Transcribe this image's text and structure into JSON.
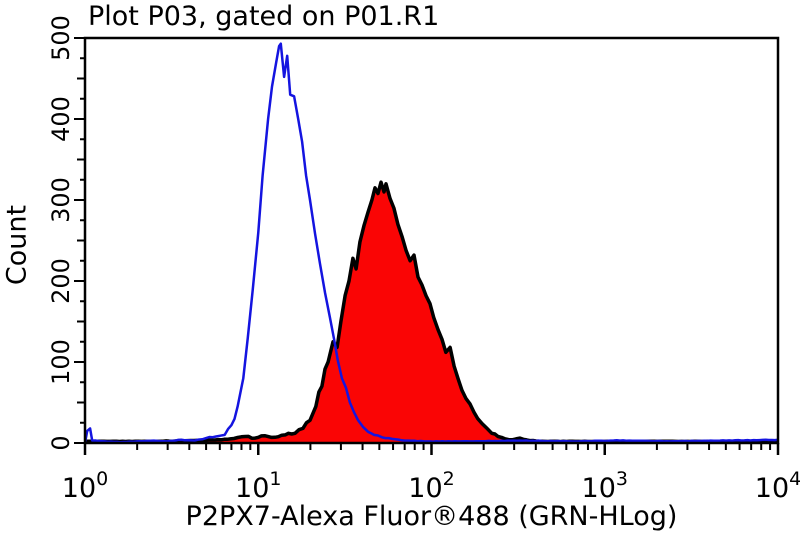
{
  "title": "Plot P03, gated on P01.R1",
  "chart_data": {
    "type": "area",
    "title": "Plot P03, gated on P01.R1",
    "xlabel": "P2PX7-Alexa Fluor®488 (GRN-HLog)",
    "ylabel": "Count",
    "x_scale": "log",
    "x_range": [
      1,
      10000
    ],
    "y_range": [
      0,
      500
    ],
    "x_tick_base": 10,
    "x_tick_exponents": [
      0,
      1,
      2,
      3,
      4
    ],
    "y_major_ticks": [
      0,
      100,
      200,
      300,
      400,
      500
    ],
    "y_minor_step": 25,
    "grid": false,
    "legend_position": "none",
    "frame_color": "#000000",
    "series": [
      {
        "name": "red-filled-histogram",
        "style": "filled",
        "line_color": "#000000",
        "fill_color": "#fa0505",
        "line_width": 3.5,
        "peak": {
          "x": 51,
          "count": 322
        },
        "points": [
          [
            1.0,
            2
          ],
          [
            2.4,
            2
          ],
          [
            4.6,
            3
          ],
          [
            6.9,
            5
          ],
          [
            8.4,
            8
          ],
          [
            9.6,
            6
          ],
          [
            10.9,
            9
          ],
          [
            12.5,
            7
          ],
          [
            14.3,
            10
          ],
          [
            16.3,
            12
          ],
          [
            18.1,
            18
          ],
          [
            19.9,
            28
          ],
          [
            21.5,
            45
          ],
          [
            23.3,
            70
          ],
          [
            25.3,
            100
          ],
          [
            27.0,
            125
          ],
          [
            28.5,
            118
          ],
          [
            30.0,
            150
          ],
          [
            31.7,
            182
          ],
          [
            33.4,
            200
          ],
          [
            35.2,
            228
          ],
          [
            36.7,
            215
          ],
          [
            38.6,
            248
          ],
          [
            40.7,
            268
          ],
          [
            43.0,
            285
          ],
          [
            45.3,
            300
          ],
          [
            47.2,
            315
          ],
          [
            49.1,
            308
          ],
          [
            51.1,
            322
          ],
          [
            53.2,
            310
          ],
          [
            54.6,
            320
          ],
          [
            57.6,
            302
          ],
          [
            60.7,
            290
          ],
          [
            64.0,
            270
          ],
          [
            67.6,
            255
          ],
          [
            71.3,
            238
          ],
          [
            75.2,
            225
          ],
          [
            79.3,
            232
          ],
          [
            83.6,
            205
          ],
          [
            88.1,
            195
          ],
          [
            92.9,
            182
          ],
          [
            98.0,
            172
          ],
          [
            103,
            155
          ],
          [
            109,
            140
          ],
          [
            115,
            128
          ],
          [
            121,
            112
          ],
          [
            128,
            118
          ],
          [
            135,
            95
          ],
          [
            142,
            80
          ],
          [
            150,
            65
          ],
          [
            158,
            55
          ],
          [
            167,
            48
          ],
          [
            176,
            38
          ],
          [
            185,
            30
          ],
          [
            196,
            24
          ],
          [
            209,
            18
          ],
          [
            223,
            12
          ],
          [
            242,
            8
          ],
          [
            266,
            5
          ],
          [
            292,
            4
          ],
          [
            324,
            6
          ],
          [
            370,
            3
          ],
          [
            452,
            2
          ],
          [
            938,
            2
          ],
          [
            3540,
            2
          ],
          [
            10000,
            2
          ]
        ]
      },
      {
        "name": "blue-open-histogram",
        "style": "open",
        "line_color": "#1414e0",
        "fill_color": null,
        "line_width": 2.5,
        "peak": {
          "x": 13.5,
          "count": 493
        },
        "points": [
          [
            1.0,
            0
          ],
          [
            1.03,
            15
          ],
          [
            1.07,
            18
          ],
          [
            1.1,
            3
          ],
          [
            1.3,
            2
          ],
          [
            1.6,
            1
          ],
          [
            2.0,
            2
          ],
          [
            2.5,
            3
          ],
          [
            3.0,
            2
          ],
          [
            3.6,
            4
          ],
          [
            4.3,
            3
          ],
          [
            5.0,
            6
          ],
          [
            5.7,
            8
          ],
          [
            6.4,
            10
          ],
          [
            7.0,
            22
          ],
          [
            7.6,
            45
          ],
          [
            8.2,
            80
          ],
          [
            8.7,
            130
          ],
          [
            9.3,
            190
          ],
          [
            10.0,
            260
          ],
          [
            10.6,
            330
          ],
          [
            11.4,
            400
          ],
          [
            12.0,
            440
          ],
          [
            12.7,
            470
          ],
          [
            13.2,
            490
          ],
          [
            13.5,
            493
          ],
          [
            14.1,
            452
          ],
          [
            14.7,
            478
          ],
          [
            15.3,
            430
          ],
          [
            16.1,
            428
          ],
          [
            17.0,
            400
          ],
          [
            17.9,
            372
          ],
          [
            18.9,
            330
          ],
          [
            19.9,
            300
          ],
          [
            21.3,
            258
          ],
          [
            22.7,
            222
          ],
          [
            24.3,
            185
          ],
          [
            25.9,
            155
          ],
          [
            27.4,
            128
          ],
          [
            28.8,
            102
          ],
          [
            30.4,
            80
          ],
          [
            32.1,
            68
          ],
          [
            33.8,
            50
          ],
          [
            35.7,
            38
          ],
          [
            37.7,
            28
          ],
          [
            40.2,
            20
          ],
          [
            43.0,
            14
          ],
          [
            46.6,
            10
          ],
          [
            51.8,
            7
          ],
          [
            59.2,
            5
          ],
          [
            70.3,
            3
          ],
          [
            98,
            2
          ],
          [
            167,
            2
          ],
          [
            324,
            3
          ],
          [
            630,
            2
          ],
          [
            1224,
            3
          ],
          [
            2378,
            2
          ],
          [
            4624,
            3
          ],
          [
            10000,
            4
          ]
        ]
      }
    ]
  }
}
